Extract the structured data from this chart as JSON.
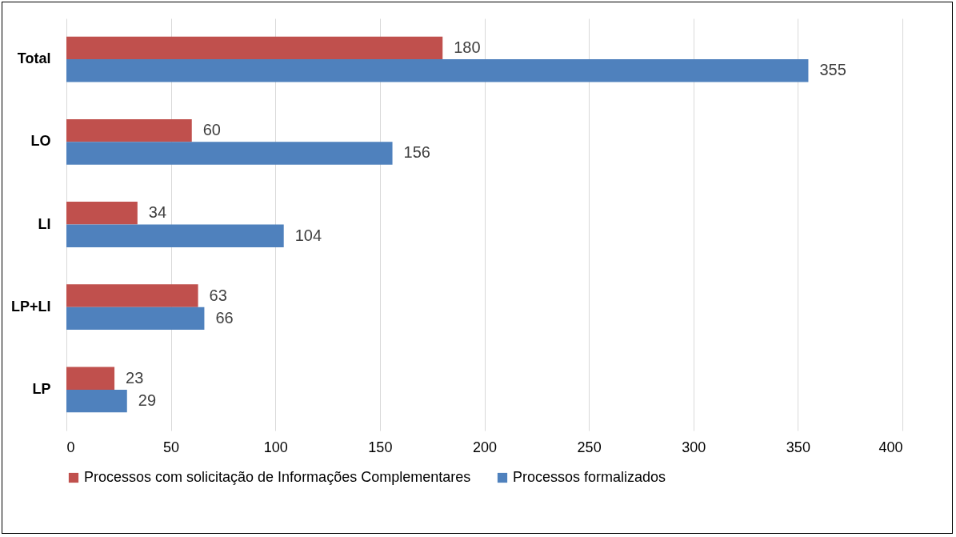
{
  "chart_data": {
    "type": "bar",
    "orientation": "horizontal",
    "categories": [
      "Total",
      "LO",
      "LI",
      "LP+LI",
      "LP"
    ],
    "series": [
      {
        "name": "Processos com solicitação de Informações Complementares",
        "color": "#c0504d",
        "values": [
          180,
          60,
          34,
          63,
          23
        ]
      },
      {
        "name": "Processos formalizados",
        "color": "#4f81bd",
        "values": [
          355,
          156,
          104,
          66,
          29
        ]
      }
    ],
    "xlim": [
      0,
      400
    ],
    "xticks": [
      0,
      50,
      100,
      150,
      200,
      250,
      300,
      350,
      400
    ],
    "grid": "x",
    "legend": "bottom",
    "data_labels": true
  }
}
